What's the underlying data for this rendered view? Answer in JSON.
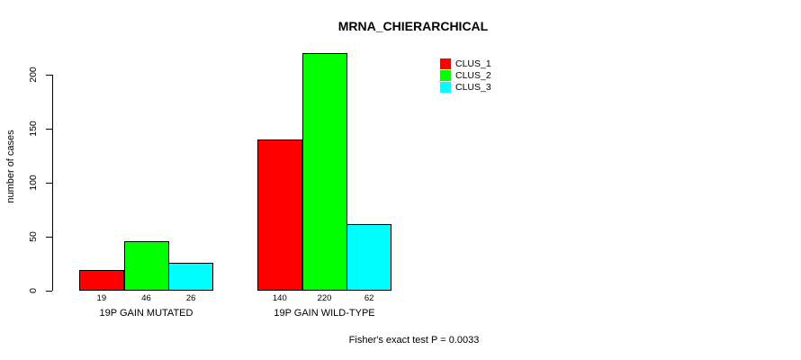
{
  "chart_data": {
    "type": "bar",
    "title": "MRNA_CHIERARCHICAL",
    "ylabel": "number of cases",
    "xlabel": "",
    "categories": [
      "19P GAIN MUTATED",
      "19P GAIN WILD-TYPE"
    ],
    "series": [
      {
        "name": "CLUS_1",
        "color": "#FF0000",
        "values": [
          19,
          140
        ]
      },
      {
        "name": "CLUS_2",
        "color": "#00FF00",
        "values": [
          46,
          220
        ]
      },
      {
        "name": "CLUS_3",
        "color": "#00FFFF",
        "values": [
          26,
          62
        ]
      }
    ],
    "bar_value_labels": [
      [
        19,
        46,
        26
      ],
      [
        140,
        220,
        62
      ]
    ],
    "yticks": [
      0,
      50,
      100,
      150,
      200
    ],
    "ylim": [
      0,
      220
    ],
    "grid": false,
    "legend_position": "top-right",
    "annotation": "Fisher's exact test P = 0.0033"
  }
}
